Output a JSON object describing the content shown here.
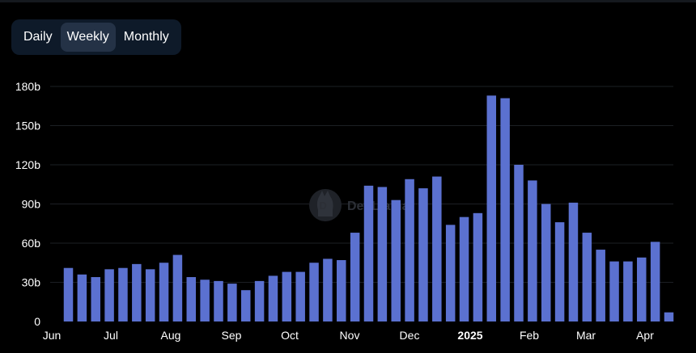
{
  "toolbar": {
    "options": [
      "Daily",
      "Weekly",
      "Monthly"
    ],
    "selected": "Weekly"
  },
  "watermark": {
    "text": "DefiLlama"
  },
  "colors": {
    "bar": "#5b71d0",
    "background": "#000000",
    "toggle_bg": "#0e1a29",
    "toggle_active": "#243246"
  },
  "chart_data": {
    "type": "bar",
    "title": "",
    "xlabel": "",
    "ylabel": "",
    "ylim": [
      0,
      180
    ],
    "y_unit": "b",
    "y_ticks": [
      "0",
      "30b",
      "60b",
      "90b",
      "120b",
      "150b",
      "180b"
    ],
    "grid": true,
    "x_ticks": [
      {
        "label": "Jun",
        "bold": false
      },
      {
        "label": "Jul",
        "bold": false
      },
      {
        "label": "Aug",
        "bold": false
      },
      {
        "label": "Sep",
        "bold": false
      },
      {
        "label": "Oct",
        "bold": false
      },
      {
        "label": "Nov",
        "bold": false
      },
      {
        "label": "Dec",
        "bold": false
      },
      {
        "label": "2025",
        "bold": true
      },
      {
        "label": "Feb",
        "bold": false
      },
      {
        "label": "Mar",
        "bold": false
      },
      {
        "label": "Apr",
        "bold": false
      }
    ],
    "values": [
      41,
      36,
      34,
      40,
      41,
      44,
      40,
      45,
      51,
      34,
      32,
      31,
      29,
      24,
      31,
      35,
      38,
      38,
      45,
      48,
      47,
      68,
      104,
      103,
      93,
      109,
      102,
      111,
      74,
      80,
      83,
      173,
      171,
      120,
      108,
      90,
      76,
      91,
      68,
      55,
      46,
      46,
      49,
      61,
      7
    ]
  }
}
